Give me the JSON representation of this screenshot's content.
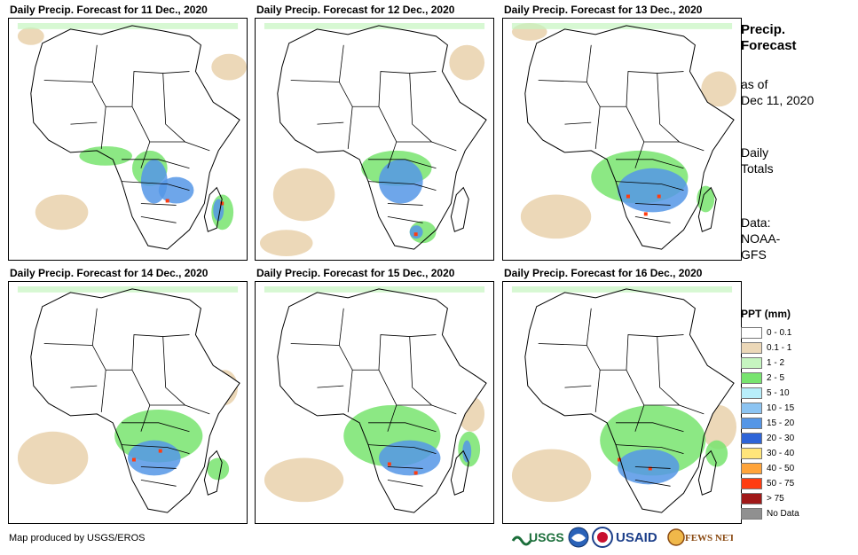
{
  "panels": [
    {
      "title": "Daily Precip. Forecast for 11 Dec., 2020"
    },
    {
      "title": "Daily Precip. Forecast for 12 Dec., 2020"
    },
    {
      "title": "Daily Precip. Forecast for 13 Dec., 2020"
    },
    {
      "title": "Daily Precip. Forecast for 14 Dec., 2020"
    },
    {
      "title": "Daily Precip. Forecast for 15 Dec., 2020"
    },
    {
      "title": "Daily Precip. Forecast for 16 Dec., 2020"
    }
  ],
  "side": {
    "title_line1": "Precip.",
    "title_line2": "Forecast",
    "asof_line1": "as of",
    "asof_line2": "Dec 11, 2020",
    "totals_line1": "Daily",
    "totals_line2": "Totals",
    "source_line1": "Data:",
    "source_line2": "NOAA-",
    "source_line3": "GFS"
  },
  "legend": {
    "title": "PPT (mm)",
    "items": [
      {
        "label": "0 - 0.1",
        "color": "#ffffff"
      },
      {
        "label": "0.1 - 1",
        "color": "#ecd8b8"
      },
      {
        "label": "1 - 2",
        "color": "#c6f5c0"
      },
      {
        "label": "2 - 5",
        "color": "#78e46f"
      },
      {
        "label": "5 - 10",
        "color": "#b8eefa"
      },
      {
        "label": "10 - 15",
        "color": "#8cc4f2"
      },
      {
        "label": "15 - 20",
        "color": "#5596e6"
      },
      {
        "label": "20 - 30",
        "color": "#2d64d8"
      },
      {
        "label": "30 - 40",
        "color": "#ffe57a"
      },
      {
        "label": "40 - 50",
        "color": "#ffa43a"
      },
      {
        "label": "50 - 75",
        "color": "#ff3c10"
      },
      {
        "label": "> 75",
        "color": "#a01818"
      },
      {
        "label": "No Data",
        "color": "#909090"
      }
    ]
  },
  "credit": "Map produced by USGS/EROS",
  "logos": {
    "usgs": "USGS",
    "usaid": "USAID",
    "fewsnet": "FEWS NET"
  }
}
